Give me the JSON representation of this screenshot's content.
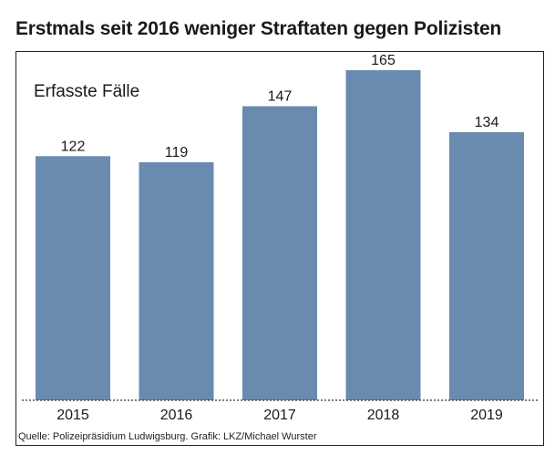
{
  "title": "Erstmals seit 2016 weniger Straftaten gegen Polizisten",
  "source": "Quelle: Polizeipräsidium Ludwigsburg. Grafik: LKZ/Michael Wurster",
  "colors": {
    "bar": "#6a8bb0",
    "baseline": "#333333",
    "frame": "#222222"
  },
  "chart_data": {
    "type": "bar",
    "categories": [
      "2015",
      "2016",
      "2017",
      "2018",
      "2019"
    ],
    "values": [
      122,
      119,
      147,
      165,
      134
    ],
    "title": "Erstmals seit 2016 weniger Straftaten gegen Polizisten",
    "ylabel": "Erfasste Fälle",
    "xlabel": "",
    "ylim": [
      0,
      165
    ],
    "grid": false,
    "legend": "none",
    "value_labels": true
  }
}
